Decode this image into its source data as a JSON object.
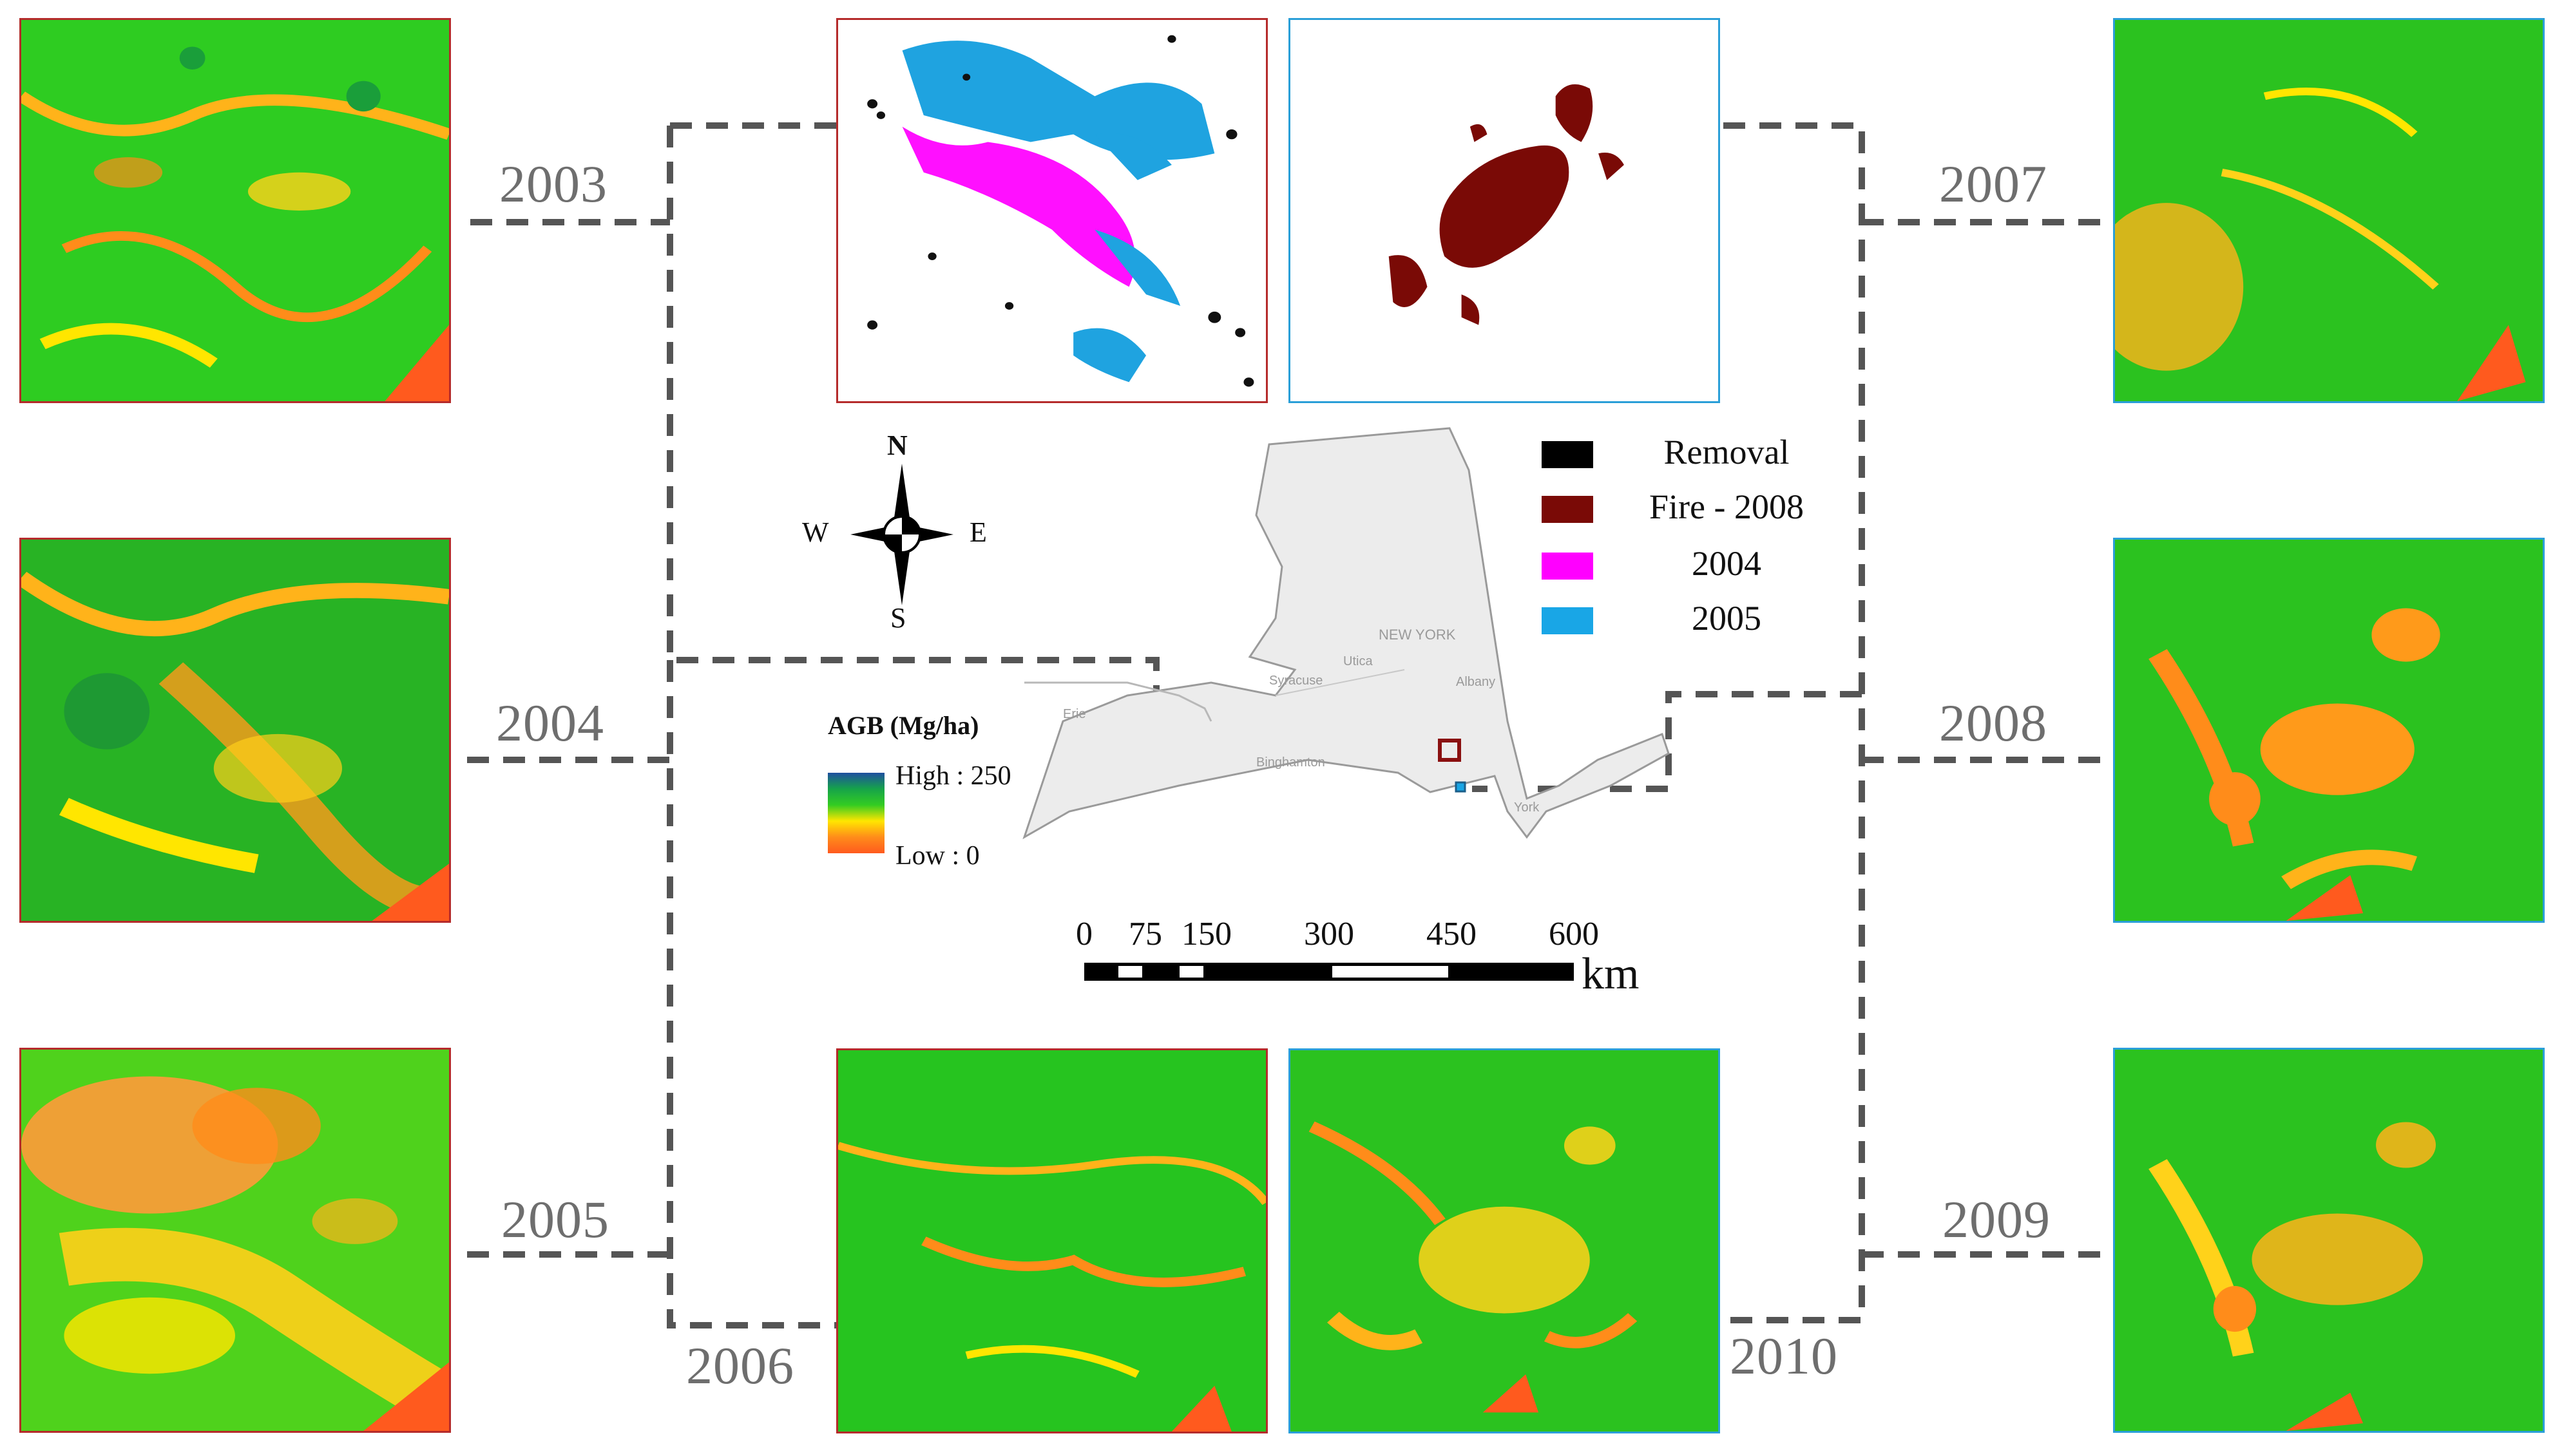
{
  "years": {
    "y2003": "2003",
    "y2004": "2004",
    "y2005": "2005",
    "y2006": "2006",
    "y2007": "2007",
    "y2008": "2008",
    "y2009": "2009",
    "y2010": "2010"
  },
  "compass": {
    "n": "N",
    "s": "S",
    "e": "E",
    "w": "W"
  },
  "legend": {
    "items": [
      {
        "label": "Removal",
        "color": "#000000"
      },
      {
        "label": "Fire - 2008",
        "color": "#7a0a06"
      },
      {
        "label": "2004",
        "color": "#ff00ff"
      },
      {
        "label": "2005",
        "color": "#19a6e6"
      }
    ]
  },
  "agb": {
    "title": "AGB (Mg/ha)",
    "high": "High : 250",
    "low": "Low : 0",
    "colors": [
      "#1f4fa0",
      "#16a34a",
      "#33cc22",
      "#ffe600",
      "#ff8c1a",
      "#ff5a1e"
    ]
  },
  "scalebar": {
    "ticks": [
      "0",
      "75",
      "150",
      "300",
      "450",
      "600"
    ],
    "unit": "km"
  },
  "map_labels": {
    "new_york": "NEW YORK",
    "syracuse": "Syracuse",
    "utica": "Utica",
    "albany": "Albany",
    "binghamton": "Binghamton",
    "erie": "Erie",
    "york": "York"
  },
  "palette": {
    "frame_red": "#b52b2b",
    "frame_blue": "#2a9fd8",
    "dash_gray": "#555555",
    "state_fill": "#ececec"
  }
}
